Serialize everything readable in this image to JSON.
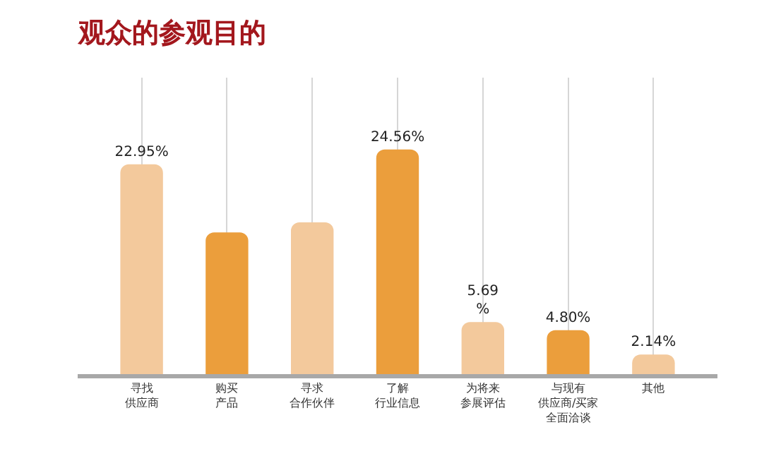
{
  "chart_data": {
    "type": "bar",
    "title": "观众的参观目的",
    "categories": [
      "寻找供应商",
      "购买产品",
      "寻求合作伙伴",
      "了解行业信息",
      "为将来参展评估",
      "与现有供应商/买家全面洽谈",
      "其他"
    ],
    "values": [
      22.95,
      15.5,
      16.6,
      24.56,
      5.69,
      4.8,
      2.14
    ],
    "value_labels": [
      "22.95%",
      null,
      null,
      "24.56%",
      "5.69\n%",
      "4.80%",
      "2.14%"
    ],
    "colors": [
      "#f3c99c",
      "#eb9e3c",
      "#f3c99c",
      "#eb9e3c",
      "#f3c99c",
      "#eb9e3c",
      "#f3c99c"
    ],
    "grid": "x",
    "legend": false
  }
}
